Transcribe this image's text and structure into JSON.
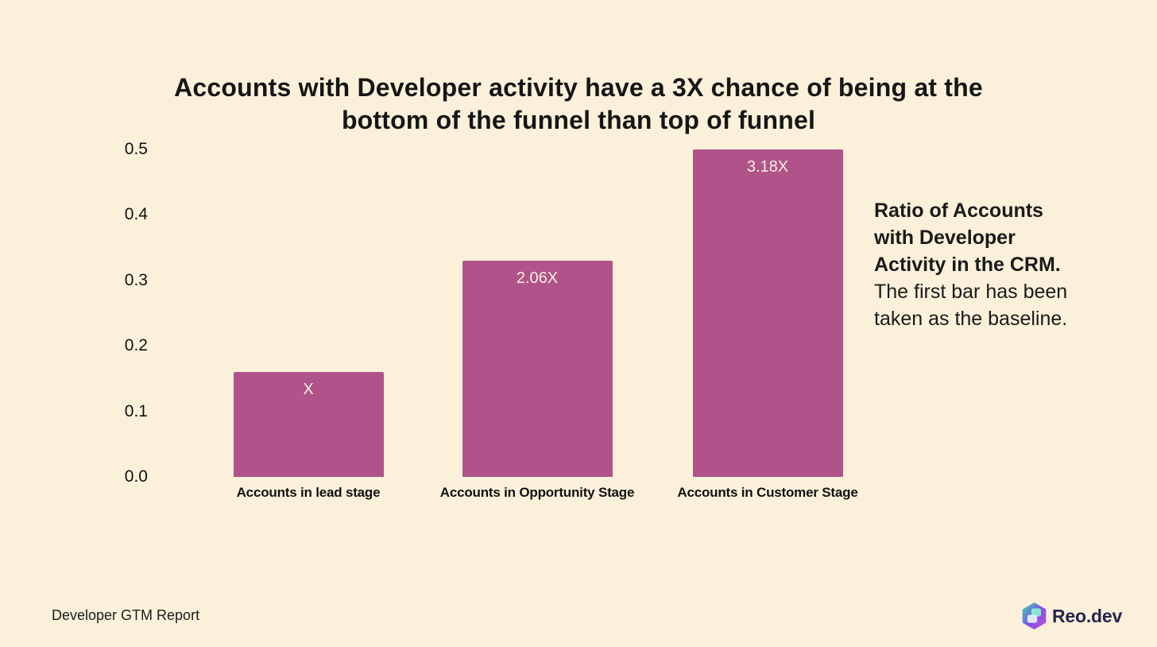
{
  "page": {
    "background_color": "#FBF1DB",
    "footer_left": "Developer GTM Report",
    "logo_text": "Reo.dev",
    "logo_icon": "reo-hexagon-icon"
  },
  "annotation": {
    "bold": "Ratio of Accounts with Developer Activity in the CRM.",
    "regular": "The first bar has been taken as the baseline."
  },
  "chart_data": {
    "type": "bar",
    "title": "Accounts with Developer activity have a 3X chance of being at the bottom of the funnel than top of funnel",
    "title_lines": [
      "Accounts with Developer activity have a 3X chance of being at the",
      "bottom of the funnel than top of funnel"
    ],
    "categories": [
      "Accounts in lead stage",
      "Accounts in Opportunity Stage",
      "Accounts in Customer Stage"
    ],
    "values": [
      0.16,
      0.33,
      0.5
    ],
    "bar_labels": [
      "X",
      "2.06X",
      "3.18X"
    ],
    "ratios": [
      1,
      2.06,
      3.18
    ],
    "ylim": [
      0,
      0.5
    ],
    "yticks": [
      0,
      0.1,
      0.2,
      0.3,
      0.4,
      0.5
    ],
    "grid": false,
    "legend": "none",
    "bar_color": "#B0538A",
    "bar_label_color": "#F8EFDE"
  }
}
